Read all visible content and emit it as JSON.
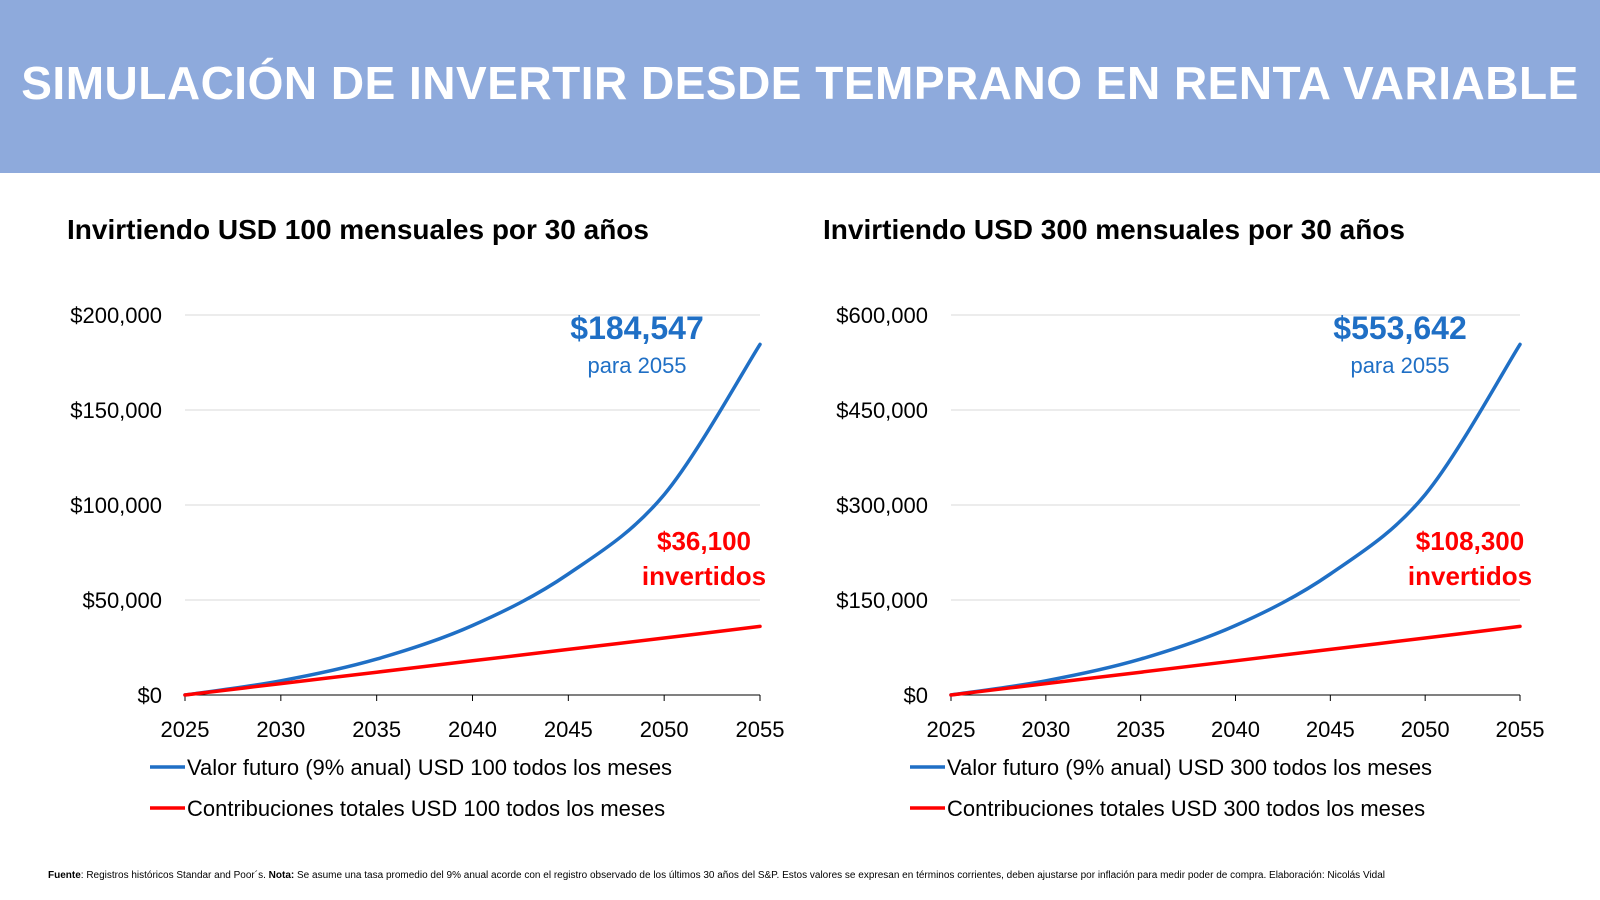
{
  "header": {
    "title": "SIMULACIÓN DE INVERTIR DESDE TEMPRANO EN RENTA VARIABLE",
    "background": "#8eaadc"
  },
  "colors": {
    "blue": "#1f6fc5",
    "red": "#ff0000",
    "grid": "#d9d9d9"
  },
  "chart_data": [
    {
      "type": "line",
      "title": "Invirtiendo USD 100 mensuales por 30 años",
      "x_ticks": [
        "2025",
        "2030",
        "2035",
        "2040",
        "2045",
        "2050",
        "2055"
      ],
      "y_ticks": [
        "$0",
        "$50,000",
        "$100,000",
        "$150,000",
        "$200,000"
      ],
      "xlim": [
        2025,
        2055
      ],
      "ylim": [
        0,
        200000
      ],
      "grid": true,
      "legend_position": "bottom",
      "series": [
        {
          "name": "Valor futuro (9% anual) USD 100 todos los meses",
          "color": "#1f6fc5",
          "x": [
            2025,
            2030,
            2035,
            2040,
            2045,
            2050,
            2055
          ],
          "y": [
            0,
            7451,
            18917,
            36558,
            63699,
            105459,
            184547
          ]
        },
        {
          "name": "Contribuciones totales USD 100 todos los meses",
          "color": "#ff0000",
          "x": [
            2025,
            2030,
            2035,
            2040,
            2045,
            2050,
            2055
          ],
          "y": [
            0,
            6000,
            12000,
            18000,
            24000,
            30000,
            36100
          ]
        }
      ],
      "annotations": {
        "future_value": "$184,547",
        "future_value_sub": "para 2055",
        "contributions": "$36,100",
        "contributions_sub": "invertidos"
      }
    },
    {
      "type": "line",
      "title": "Invirtiendo USD 300 mensuales por 30 años",
      "x_ticks": [
        "2025",
        "2030",
        "2035",
        "2040",
        "2045",
        "2050",
        "2055"
      ],
      "y_ticks": [
        "$0",
        "$150,000",
        "$300,000",
        "$450,000",
        "$600,000"
      ],
      "xlim": [
        2025,
        2055
      ],
      "ylim": [
        0,
        600000
      ],
      "grid": true,
      "legend_position": "bottom",
      "series": [
        {
          "name": "Valor futuro (9% anual) USD 300 todos los meses",
          "color": "#1f6fc5",
          "x": [
            2025,
            2030,
            2035,
            2040,
            2045,
            2050,
            2055
          ],
          "y": [
            0,
            22352,
            56751,
            109674,
            191096,
            316378,
            553642
          ]
        },
        {
          "name": "Contribuciones totales USD 300 todos los meses",
          "color": "#ff0000",
          "x": [
            2025,
            2030,
            2035,
            2040,
            2045,
            2050,
            2055
          ],
          "y": [
            0,
            18000,
            36000,
            54000,
            72000,
            90000,
            108300
          ]
        }
      ],
      "annotations": {
        "future_value": "$553,642",
        "future_value_sub": "para 2055",
        "contributions": "$108,300",
        "contributions_sub": "invertidos"
      }
    }
  ],
  "footnote": {
    "source_label": "Fuente",
    "source_text": ": Registros históricos Standar and Poor´s. ",
    "note_label": "Nota:",
    "note_text": " Se asume una tasa promedio del 9% anual acorde con el registro observado de los últimos 30 años del S&P. Estos valores se expresan en términos corrientes, deben ajustarse por inflación para medir poder de compra. Elaboración: Nicolás Vidal"
  }
}
